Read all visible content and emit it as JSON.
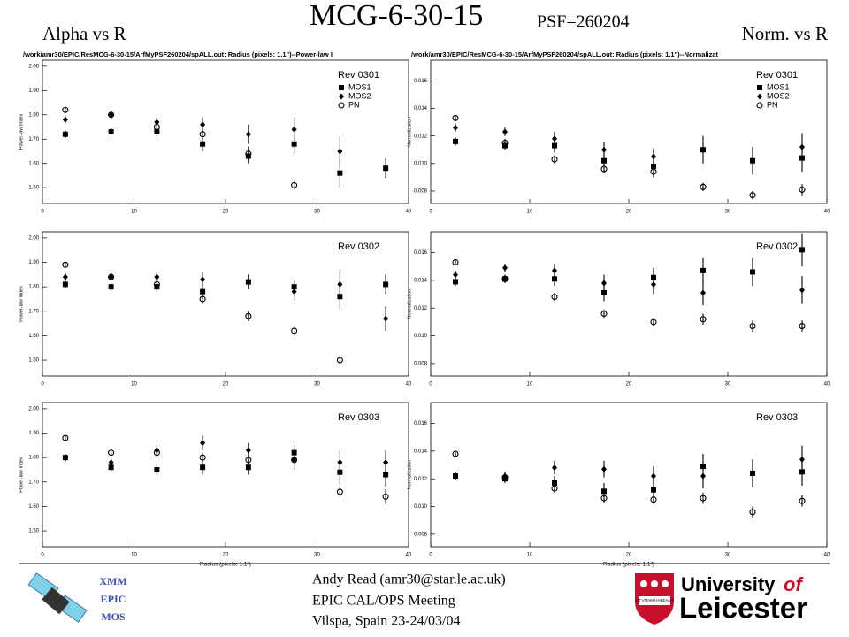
{
  "slide": {
    "title": "MCG-6-30-15",
    "subtitle": "PSF=260204",
    "left_heading": "Alpha vs R",
    "right_heading": "Norm. vs R"
  },
  "chart_data": [
    {
      "type": "scatter",
      "header": "/work/amr30/EPIC/ResMCG-6-30-15/ArfMyPSF260204/spALL.out: Radius (pixels: 1.1\")--Power-law I",
      "ylabel": "Power-law Index",
      "legend_title": "Rev 0301",
      "x": [
        2.5,
        7.5,
        12.5,
        17.5,
        22.5,
        27.5,
        32.5,
        37.5
      ],
      "xlim": [
        0,
        40
      ],
      "xticks": [
        0,
        10,
        20,
        30,
        40
      ],
      "ylim": [
        1.435,
        2.025
      ],
      "yticks": [
        {
          "value": 1.5,
          "label": "1.50"
        },
        {
          "value": 1.6,
          "label": "1.60"
        },
        {
          "value": 1.7,
          "label": "1.70"
        },
        {
          "value": 1.8,
          "label": "1.80"
        },
        {
          "value": 1.9,
          "label": "1.90"
        },
        {
          "value": 2.0,
          "label": "2.00"
        }
      ],
      "series": [
        {
          "name": "MOS1",
          "marker": "square",
          "color": "#000000",
          "values": [
            1.72,
            1.73,
            1.73,
            1.68,
            1.63,
            1.68,
            1.56,
            1.58
          ],
          "errors": [
            0.015,
            0.015,
            0.02,
            0.03,
            0.03,
            0.04,
            0.06,
            0.04
          ]
        },
        {
          "name": "MOS2",
          "marker": "diamond",
          "color": "#000000",
          "values": [
            1.78,
            1.8,
            1.77,
            1.76,
            1.72,
            1.74,
            1.65,
            null
          ],
          "errors": [
            0.015,
            0.015,
            0.02,
            0.03,
            0.04,
            0.05,
            0.06,
            null
          ]
        },
        {
          "name": "PN",
          "marker": "circle",
          "color": "#000000",
          "values": [
            1.82,
            1.8,
            1.75,
            1.72,
            1.64,
            1.51,
            null,
            null
          ],
          "errors": [
            0.01,
            0.01,
            0.02,
            0.02,
            0.03,
            0.02,
            null,
            null
          ]
        }
      ]
    },
    {
      "type": "scatter",
      "header": "/work/amr30/EPIC/ResMCG-6-30-15/ArfMyPSF260204/spALL.out: Radius (pixels: 1.1\")--Normalizat",
      "ylabel": "Normalization",
      "legend_title": "Rev 0301",
      "x": [
        2.5,
        7.5,
        12.5,
        17.5,
        22.5,
        27.5,
        32.5,
        37.5
      ],
      "xlim": [
        0,
        40
      ],
      "xticks": [
        0,
        10,
        20,
        30,
        40
      ],
      "ylim": [
        0.0071,
        0.0175
      ],
      "yticks": [
        {
          "value": 0.008,
          "label": "0.008"
        },
        {
          "value": 0.01,
          "label": "0.010"
        },
        {
          "value": 0.012,
          "label": "0.012"
        },
        {
          "value": 0.014,
          "label": "0.014"
        },
        {
          "value": 0.016,
          "label": "0.016"
        }
      ],
      "series": [
        {
          "name": "MOS1",
          "marker": "square",
          "color": "#000000",
          "values": [
            0.0116,
            0.0113,
            0.0113,
            0.0102,
            0.0098,
            0.011,
            0.0102,
            0.0104
          ],
          "errors": [
            0.0003,
            0.0003,
            0.0005,
            0.0006,
            0.0006,
            0.001,
            0.001,
            0.001
          ]
        },
        {
          "name": "MOS2",
          "marker": "diamond",
          "color": "#000000",
          "values": [
            0.0126,
            0.0123,
            0.0118,
            0.011,
            0.0105,
            null,
            null,
            0.0112
          ],
          "errors": [
            0.0003,
            0.0003,
            0.0005,
            0.0006,
            0.0006,
            null,
            null,
            0.001
          ]
        },
        {
          "name": "PN",
          "marker": "circle",
          "color": "#000000",
          "values": [
            0.0133,
            0.0115,
            0.0103,
            0.0096,
            0.0094,
            0.0083,
            0.0077,
            0.0081
          ],
          "errors": [
            0.0002,
            0.0003,
            0.0003,
            0.0003,
            0.0004,
            0.0003,
            0.0003,
            0.0004
          ]
        }
      ]
    },
    {
      "type": "scatter",
      "ylabel": "Power-law Index",
      "legend_title": "Rev 0302",
      "x": [
        2.5,
        7.5,
        12.5,
        17.5,
        22.5,
        27.5,
        32.5,
        37.5
      ],
      "xlim": [
        0,
        40
      ],
      "xticks": [
        0,
        10,
        20,
        30,
        40
      ],
      "ylim": [
        1.435,
        2.025
      ],
      "yticks": [
        {
          "value": 1.5,
          "label": "1.50"
        },
        {
          "value": 1.6,
          "label": "1.60"
        },
        {
          "value": 1.7,
          "label": "1.70"
        },
        {
          "value": 1.8,
          "label": "1.80"
        },
        {
          "value": 1.9,
          "label": "1.90"
        },
        {
          "value": 2.0,
          "label": "2.00"
        }
      ],
      "series": [
        {
          "marker": "square",
          "color": "#000000",
          "values": [
            1.81,
            1.8,
            1.8,
            1.78,
            1.82,
            1.8,
            1.76,
            1.81
          ],
          "errors": [
            0.015,
            0.015,
            0.02,
            0.03,
            0.03,
            0.03,
            0.05,
            0.04
          ]
        },
        {
          "marker": "diamond",
          "color": "#000000",
          "values": [
            1.84,
            1.84,
            1.84,
            1.83,
            1.82,
            1.78,
            1.81,
            1.67
          ],
          "errors": [
            0.015,
            0.015,
            0.02,
            0.03,
            0.03,
            0.04,
            0.06,
            0.05
          ]
        },
        {
          "marker": "circle",
          "color": "#000000",
          "values": [
            1.89,
            1.84,
            1.81,
            1.75,
            1.68,
            1.62,
            1.5,
            null
          ],
          "errors": [
            0.01,
            0.01,
            0.015,
            0.02,
            0.02,
            0.02,
            0.02,
            null
          ]
        }
      ]
    },
    {
      "type": "scatter",
      "ylabel": "Normalization",
      "legend_title": "Rev 0302",
      "x": [
        2.5,
        7.5,
        12.5,
        17.5,
        22.5,
        27.5,
        32.5,
        37.5
      ],
      "xlim": [
        0,
        40
      ],
      "xticks": [
        0,
        10,
        20,
        30,
        40
      ],
      "ylim": [
        0.0071,
        0.0175
      ],
      "yticks": [
        {
          "value": 0.008,
          "label": "0.008"
        },
        {
          "value": 0.01,
          "label": "0.010"
        },
        {
          "value": 0.012,
          "label": "0.012"
        },
        {
          "value": 0.014,
          "label": "0.014"
        },
        {
          "value": 0.016,
          "label": "0.016"
        }
      ],
      "series": [
        {
          "marker": "square",
          "color": "#000000",
          "values": [
            0.0139,
            0.0141,
            0.0141,
            0.0131,
            0.0142,
            0.0147,
            0.0146,
            0.0162
          ],
          "errors": [
            0.0003,
            0.0003,
            0.0005,
            0.0006,
            0.0007,
            0.0009,
            0.001,
            0.0012
          ]
        },
        {
          "marker": "diamond",
          "color": "#000000",
          "values": [
            0.0144,
            0.0149,
            0.0147,
            0.0138,
            0.0137,
            0.0131,
            null,
            0.0133
          ],
          "errors": [
            0.0003,
            0.0003,
            0.0005,
            0.0006,
            0.0007,
            0.0009,
            null,
            0.001
          ]
        },
        {
          "marker": "circle",
          "color": "#000000",
          "values": [
            0.0153,
            0.0141,
            0.0128,
            0.0116,
            0.011,
            0.0112,
            0.0107,
            0.0107
          ],
          "errors": [
            0.0002,
            0.0003,
            0.0003,
            0.0003,
            0.0003,
            0.0004,
            0.0004,
            0.0004
          ]
        }
      ]
    },
    {
      "type": "scatter",
      "xlabel": "Radius (pixels: 1.1\")",
      "ylabel": "Power-law Index",
      "legend_title": "Rev 0303",
      "x": [
        2.5,
        7.5,
        12.5,
        17.5,
        22.5,
        27.5,
        32.5,
        37.5
      ],
      "xlim": [
        0,
        40
      ],
      "xticks": [
        0,
        10,
        20,
        30,
        40
      ],
      "ylim": [
        1.435,
        2.025
      ],
      "yticks": [
        {
          "value": 1.5,
          "label": "1.50"
        },
        {
          "value": 1.6,
          "label": "1.60"
        },
        {
          "value": 1.7,
          "label": "1.70"
        },
        {
          "value": 1.8,
          "label": "1.80"
        },
        {
          "value": 1.9,
          "label": "1.90"
        },
        {
          "value": 2.0,
          "label": "2.00"
        }
      ],
      "series": [
        {
          "marker": "square",
          "color": "#000000",
          "values": [
            1.8,
            1.76,
            1.75,
            1.76,
            1.76,
            1.82,
            1.74,
            1.73
          ],
          "errors": [
            0.015,
            0.015,
            0.02,
            0.03,
            0.03,
            0.03,
            0.05,
            0.05
          ]
        },
        {
          "marker": "diamond",
          "color": "#000000",
          "values": [
            1.8,
            1.78,
            1.83,
            1.86,
            1.83,
            1.79,
            1.78,
            1.78
          ],
          "errors": [
            0.015,
            0.015,
            0.02,
            0.03,
            0.03,
            0.04,
            0.05,
            0.05
          ]
        },
        {
          "marker": "circle",
          "color": "#000000",
          "values": [
            1.88,
            1.82,
            1.82,
            1.8,
            1.79,
            1.79,
            1.66,
            1.64
          ],
          "errors": [
            0.01,
            0.01,
            0.015,
            0.02,
            0.02,
            0.02,
            0.02,
            0.03
          ]
        }
      ]
    },
    {
      "type": "scatter",
      "xlabel": "Radius (pixels: 1.1\")",
      "ylabel": "Normalization",
      "legend_title": "Rev 0303",
      "x": [
        2.5,
        7.5,
        12.5,
        17.5,
        22.5,
        27.5,
        32.5,
        37.5
      ],
      "xlim": [
        0,
        40
      ],
      "xticks": [
        0,
        10,
        20,
        30,
        40
      ],
      "ylim": [
        0.0071,
        0.0175
      ],
      "yticks": [
        {
          "value": 0.008,
          "label": "0.008"
        },
        {
          "value": 0.01,
          "label": "0.010"
        },
        {
          "value": 0.012,
          "label": "0.012"
        },
        {
          "value": 0.014,
          "label": "0.014"
        },
        {
          "value": 0.016,
          "label": "0.016"
        }
      ],
      "series": [
        {
          "marker": "square",
          "color": "#000000",
          "values": [
            0.0122,
            0.012,
            0.0117,
            0.0111,
            0.0112,
            0.0129,
            0.0124,
            0.0125
          ],
          "errors": [
            0.0003,
            0.0003,
            0.0005,
            0.0006,
            0.0007,
            0.0009,
            0.001,
            0.001
          ]
        },
        {
          "marker": "diamond",
          "color": "#000000",
          "values": [
            0.0122,
            0.0122,
            0.0128,
            0.0127,
            0.0122,
            0.0122,
            null,
            0.0134
          ],
          "errors": [
            0.0003,
            0.0003,
            0.0005,
            0.0006,
            0.0007,
            0.0009,
            null,
            0.001
          ]
        },
        {
          "marker": "circle",
          "color": "#000000",
          "values": [
            0.0138,
            0.0121,
            0.0113,
            0.0106,
            0.0105,
            0.0106,
            0.0096,
            0.0104
          ],
          "errors": [
            0.0002,
            0.0003,
            0.0003,
            0.0003,
            0.0003,
            0.0004,
            0.0004,
            0.0004
          ]
        }
      ]
    }
  ],
  "footer": {
    "logo_lines": [
      "XMM",
      "EPIC",
      "MOS"
    ],
    "author_lines": [
      "Andy Read (amr30@star.le.ac.uk)",
      "EPIC CAL/OPS Meeting",
      "Vilspa, Spain 23-24/03/04"
    ],
    "university": "University",
    "university_of": "of",
    "university_name": "Leicester",
    "crest_motto": "UT VITAM HABEANT"
  }
}
